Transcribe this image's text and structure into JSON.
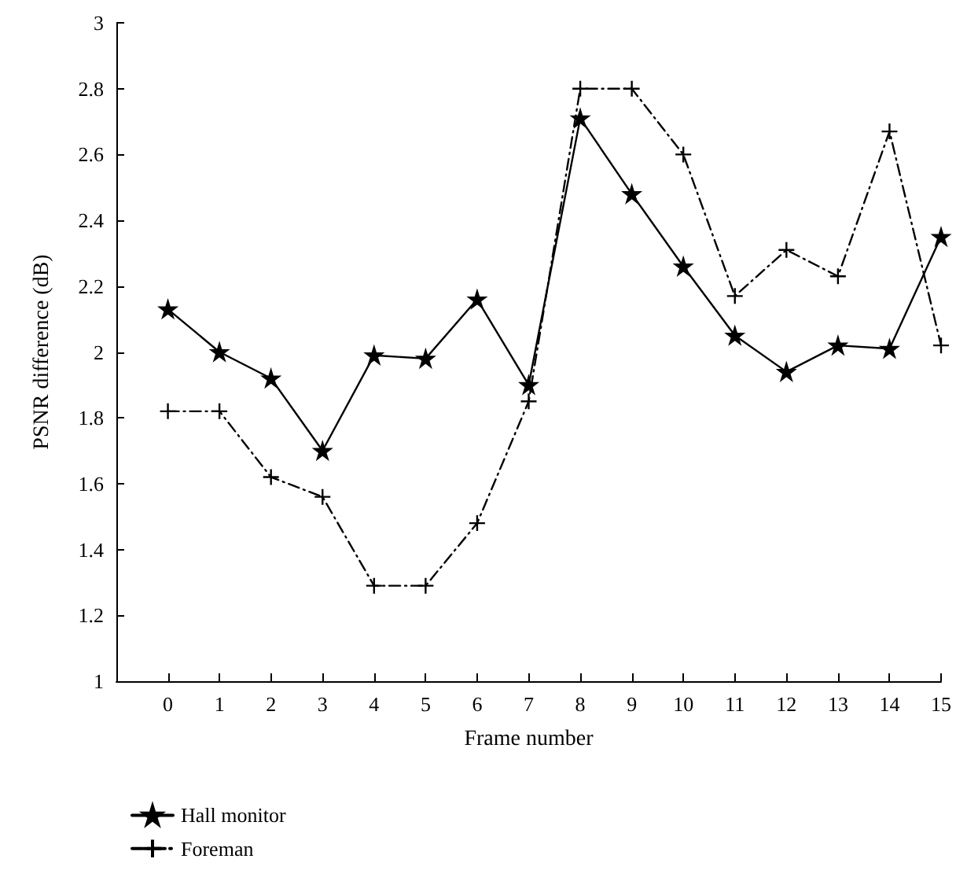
{
  "chart_data": {
    "type": "line",
    "xlabel": "Frame number",
    "ylabel": "PSNR difference (dB)",
    "x": [
      0,
      1,
      2,
      3,
      4,
      5,
      6,
      7,
      8,
      9,
      10,
      11,
      12,
      13,
      14,
      15
    ],
    "xlim": [
      -1,
      15
    ],
    "xticks": [
      0,
      1,
      2,
      3,
      4,
      5,
      6,
      7,
      8,
      9,
      10,
      11,
      12,
      13,
      14,
      15
    ],
    "ylim": [
      1,
      3
    ],
    "yticks": [
      1,
      1.2,
      1.4,
      1.6,
      1.8,
      2,
      2.2,
      2.4,
      2.6,
      2.8,
      3
    ],
    "grid": false,
    "legend": "bottom left",
    "series": [
      {
        "name": "Hall monitor",
        "color": "#000000",
        "marker": "star",
        "line_style": "solid",
        "values": [
          2.13,
          2.0,
          1.92,
          1.7,
          1.99,
          1.98,
          2.16,
          1.9,
          2.71,
          2.48,
          2.26,
          2.05,
          1.94,
          2.02,
          2.01,
          2.35
        ]
      },
      {
        "name": "Foreman",
        "color": "#000000",
        "marker": "cross",
        "line_style": "dashdot",
        "values": [
          1.82,
          1.82,
          1.62,
          1.56,
          1.29,
          1.29,
          1.48,
          1.85,
          2.8,
          2.8,
          2.6,
          2.17,
          2.31,
          2.23,
          2.67,
          2.02
        ]
      }
    ]
  }
}
